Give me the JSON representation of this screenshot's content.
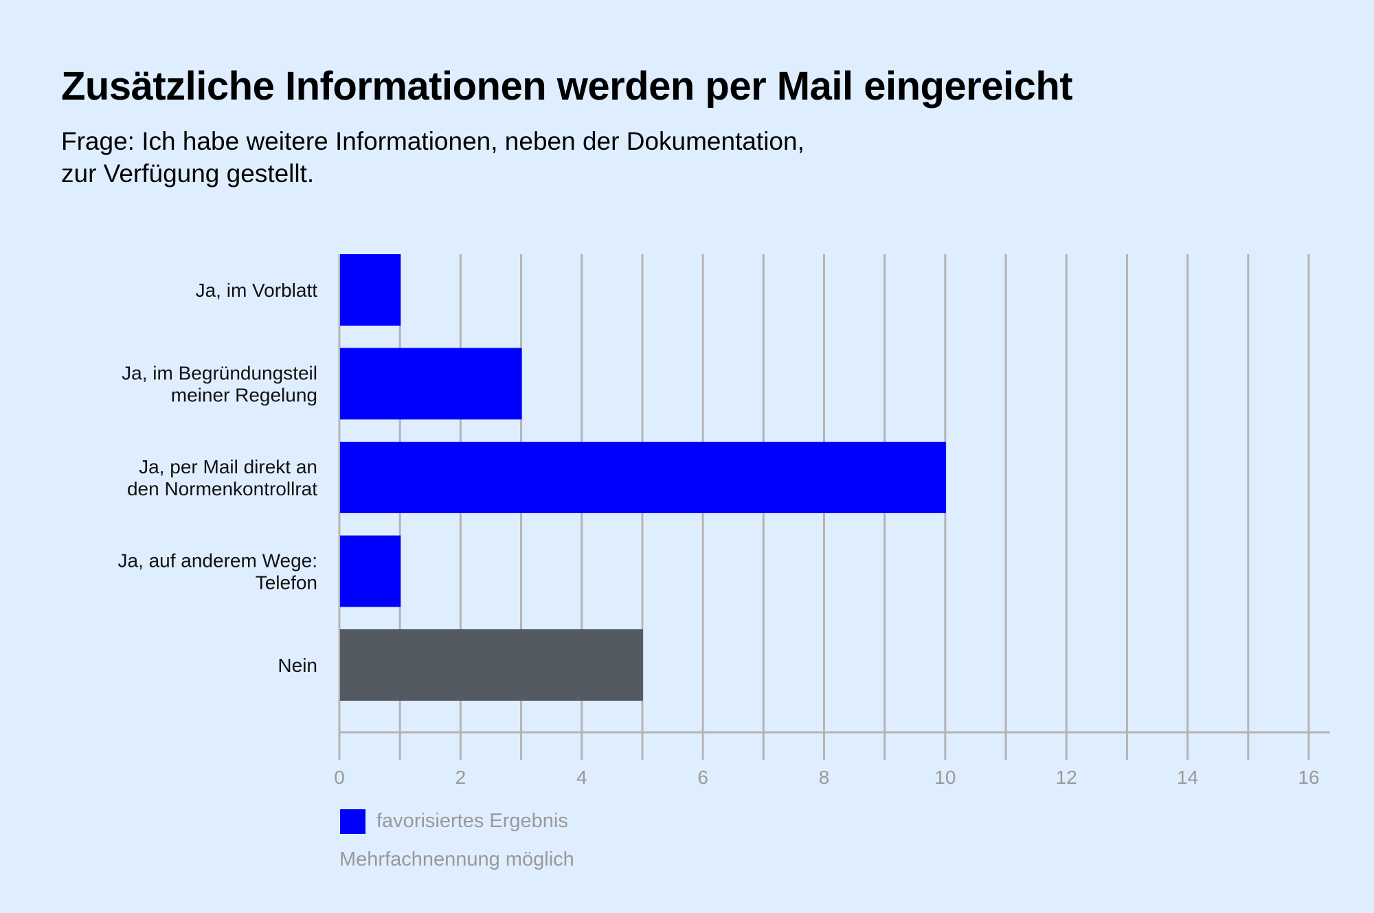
{
  "header": {
    "title": "Zusätzliche Informationen werden per Mail  eingereicht",
    "subtitle_lines": [
      "Frage: Ich habe weitere Informationen, neben der Dokumentation,",
      "zur Verfügung gestellt."
    ]
  },
  "chart_data": {
    "type": "bar",
    "orientation": "horizontal",
    "categories": [
      [
        "Ja, im Vorblatt"
      ],
      [
        "Ja, im Begründungsteil",
        "meiner Regelung"
      ],
      [
        "Ja, per Mail direkt an",
        "den Normenkontrollrat"
      ],
      [
        "Ja, auf anderem Wege:",
        "Telefon"
      ],
      [
        "Nein"
      ]
    ],
    "values": [
      1,
      3,
      10,
      1,
      5
    ],
    "bar_colors": [
      "#0000ff",
      "#0000ff",
      "#0000ff",
      "#0000ff",
      "#545a61"
    ],
    "xlim": [
      0,
      16
    ],
    "x_ticks": [
      "0",
      "2",
      "4",
      "6",
      "8",
      "10",
      "12",
      "14",
      "16"
    ],
    "grid": true,
    "grid_step": 1,
    "legend_position": "bottom-left",
    "legend": [
      {
        "label": "favorisiertes Ergebnis",
        "color": "#0000ff"
      }
    ],
    "note": "Mehrfachnennung möglich"
  },
  "colors": {
    "background": "#dfeeff",
    "accent": "#0000ff",
    "neutral": "#545a61",
    "grid": "#b4b4b4"
  }
}
